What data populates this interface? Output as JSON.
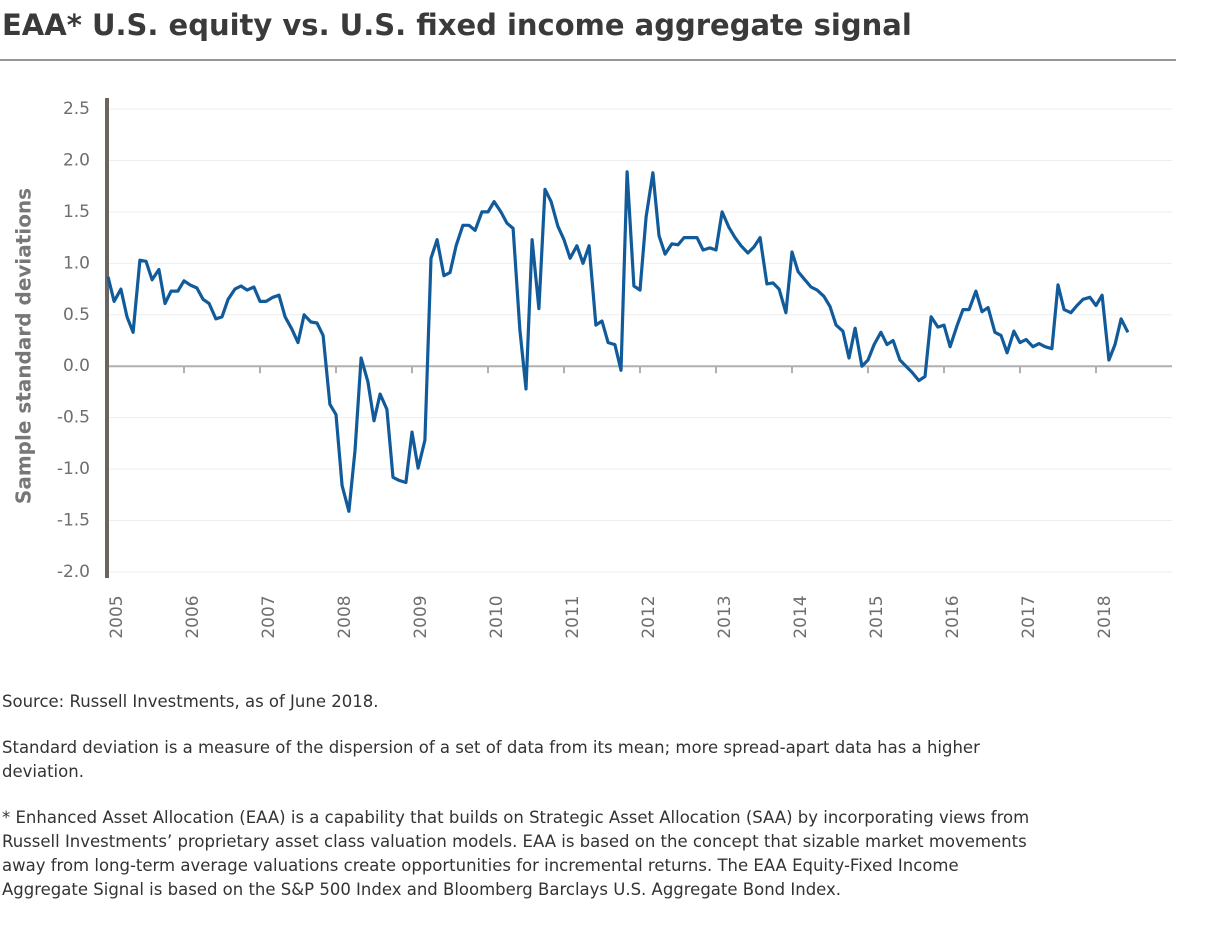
{
  "chart_data": {
    "type": "line",
    "title": "EAA* U.S. equity vs. U.S. fixed income aggregate signal",
    "y_label": "Sample standard deviations",
    "color": "#125b9b",
    "xlim": [
      2005,
      2019
    ],
    "xticks": [
      2005,
      2006,
      2007,
      2008,
      2009,
      2010,
      2011,
      2012,
      2013,
      2014,
      2015,
      2016,
      2017,
      2018
    ],
    "ylim": [
      -2,
      2.5
    ],
    "yticks": [
      {
        "value": -2,
        "label": "-2.0"
      },
      -1.5,
      {
        "value": -1,
        "label": "-1.0"
      },
      -0.5,
      {
        "value": 0,
        "label": "0.0"
      },
      0.5,
      {
        "value": 1,
        "label": "1.0"
      },
      1.5,
      {
        "value": 2,
        "label": "2.0"
      },
      2.5
    ],
    "grid": true,
    "x": [
      2005.0,
      2005.08,
      2005.17,
      2005.25,
      2005.33,
      2005.42,
      2005.5,
      2005.58,
      2005.67,
      2005.75,
      2005.83,
      2005.92,
      2006.0,
      2006.08,
      2006.17,
      2006.25,
      2006.33,
      2006.42,
      2006.5,
      2006.58,
      2006.67,
      2006.75,
      2006.83,
      2006.92,
      2007.0,
      2007.08,
      2007.17,
      2007.25,
      2007.33,
      2007.42,
      2007.5,
      2007.58,
      2007.67,
      2007.75,
      2007.83,
      2007.92,
      2008.0,
      2008.08,
      2008.17,
      2008.25,
      2008.33,
      2008.42,
      2008.5,
      2008.58,
      2008.67,
      2008.75,
      2008.83,
      2008.92,
      2009.0,
      2009.08,
      2009.17,
      2009.25,
      2009.33,
      2009.42,
      2009.5,
      2009.58,
      2009.67,
      2009.75,
      2009.83,
      2009.92,
      2010.0,
      2010.08,
      2010.17,
      2010.25,
      2010.33,
      2010.42,
      2010.5,
      2010.58,
      2010.67,
      2010.75,
      2010.83,
      2010.92,
      2011.0,
      2011.08,
      2011.17,
      2011.25,
      2011.33,
      2011.42,
      2011.5,
      2011.58,
      2011.67,
      2011.75,
      2011.83,
      2011.92,
      2012.0,
      2012.08,
      2012.17,
      2012.25,
      2012.33,
      2012.42,
      2012.5,
      2012.58,
      2012.67,
      2012.75,
      2012.83,
      2012.92,
      2013.0,
      2013.08,
      2013.17,
      2013.25,
      2013.33,
      2013.42,
      2013.5,
      2013.58,
      2013.67,
      2013.75,
      2013.83,
      2013.92,
      2014.0,
      2014.08,
      2014.17,
      2014.25,
      2014.33,
      2014.42,
      2014.5,
      2014.58,
      2014.67,
      2014.75,
      2014.83,
      2014.92,
      2015.0,
      2015.08,
      2015.17,
      2015.25,
      2015.33,
      2015.42,
      2015.5,
      2015.58,
      2015.67,
      2015.75,
      2015.83,
      2015.92,
      2016.0,
      2016.08,
      2016.17,
      2016.25,
      2016.33,
      2016.42,
      2016.5,
      2016.58,
      2016.67,
      2016.75,
      2016.83,
      2016.92,
      2017.0,
      2017.08,
      2017.17,
      2017.25,
      2017.33,
      2017.42,
      2017.5,
      2017.58,
      2017.67,
      2017.75,
      2017.83,
      2017.92,
      2018.0,
      2018.08,
      2018.17,
      2018.25,
      2018.33,
      2018.42
    ],
    "values": [
      0.87,
      0.63,
      0.75,
      0.48,
      0.33,
      1.03,
      1.02,
      0.84,
      0.94,
      0.61,
      0.73,
      0.73,
      0.83,
      0.79,
      0.76,
      0.65,
      0.61,
      0.46,
      0.48,
      0.65,
      0.75,
      0.78,
      0.74,
      0.77,
      0.63,
      0.63,
      0.67,
      0.69,
      0.48,
      0.36,
      0.23,
      0.5,
      0.43,
      0.42,
      0.3,
      -0.37,
      -0.47,
      -1.16,
      -1.41,
      -0.82,
      0.08,
      -0.15,
      -0.53,
      -0.27,
      -0.42,
      -1.08,
      -1.11,
      -1.13,
      -0.64,
      -0.99,
      -0.72,
      1.05,
      1.23,
      0.88,
      0.91,
      1.17,
      1.37,
      1.37,
      1.32,
      1.5,
      1.5,
      1.6,
      1.5,
      1.39,
      1.34,
      0.35,
      -0.22,
      1.23,
      0.56,
      1.72,
      1.6,
      1.36,
      1.23,
      1.05,
      1.17,
      1.0,
      1.17,
      0.4,
      0.44,
      0.23,
      0.21,
      -0.04,
      1.89,
      0.78,
      0.74,
      1.45,
      1.88,
      1.27,
      1.09,
      1.19,
      1.18,
      1.25,
      1.25,
      1.25,
      1.13,
      1.15,
      1.13,
      1.5,
      1.35,
      1.25,
      1.17,
      1.1,
      1.16,
      1.25,
      0.8,
      0.81,
      0.75,
      0.52,
      1.11,
      0.92,
      0.84,
      0.77,
      0.74,
      0.68,
      0.58,
      0.4,
      0.34,
      0.08,
      0.37,
      0.0,
      0.06,
      0.21,
      0.33,
      0.21,
      0.25,
      0.06,
      0.0,
      -0.06,
      -0.14,
      -0.1,
      0.48,
      0.38,
      0.4,
      0.19,
      0.39,
      0.55,
      0.55,
      0.73,
      0.53,
      0.57,
      0.33,
      0.3,
      0.13,
      0.34,
      0.23,
      0.26,
      0.19,
      0.22,
      0.19,
      0.17,
      0.79,
      0.55,
      0.52,
      0.59,
      0.65,
      0.67,
      0.59,
      0.69,
      0.06,
      0.21,
      0.46,
      0.33
    ]
  },
  "notes": [
    "Source: Russell Investments, as of June 2018.",
    "Standard deviation is a measure of the dispersion of a set of data from its mean; more spread-apart data has a higher deviation.",
    "* Enhanced Asset Allocation (EAA) is a capability that builds on Strategic Asset Allocation (SAA) by incorporating views from Russell Investments’ proprietary asset class valuation models. EAA is based on the concept that sizable market movements away from long-term average valuations create opportunities for incremental returns. The EAA Equity-Fixed Income Aggregate Signal is based on the S&P 500 Index and Bloomberg Barclays U.S. Aggregate Bond Index."
  ]
}
